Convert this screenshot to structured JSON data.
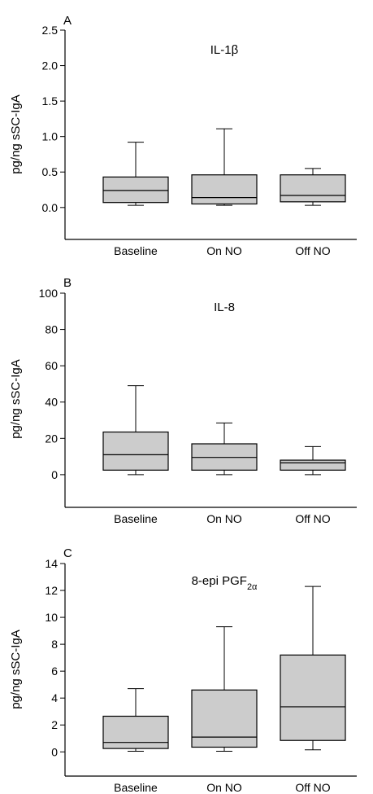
{
  "chart_data": [
    {
      "type": "box",
      "panel_label": "A",
      "title_main": "IL-1β",
      "title_sub": "",
      "ylabel": "pg/ng sSC-IgA",
      "ylim": [
        -0.45,
        2.5
      ],
      "yticks": [
        "2.5",
        "2.0",
        "1.5",
        "1.0",
        "0.5",
        "0.0"
      ],
      "ytick_values": [
        2.5,
        2.0,
        1.5,
        1.0,
        0.5,
        0.0
      ],
      "categories": [
        "Baseline",
        "On NO",
        "Off NO"
      ],
      "boxes": [
        {
          "min": 0.03,
          "q1": 0.07,
          "median": 0.24,
          "q3": 0.43,
          "max": 0.92
        },
        {
          "min": 0.03,
          "q1": 0.05,
          "median": 0.14,
          "q3": 0.46,
          "max": 1.11
        },
        {
          "min": 0.03,
          "q1": 0.08,
          "median": 0.17,
          "q3": 0.46,
          "max": 0.55
        }
      ]
    },
    {
      "type": "box",
      "panel_label": "B",
      "title_main": "IL-8",
      "title_sub": "",
      "ylabel": "pg/ng sSC-IgA",
      "ylim": [
        -18,
        100
      ],
      "yticks": [
        "100",
        "80",
        "60",
        "40",
        "20",
        "0"
      ],
      "ytick_values": [
        100,
        80,
        60,
        40,
        20,
        0
      ],
      "categories": [
        "Baseline",
        "On NO",
        "Off NO"
      ],
      "boxes": [
        {
          "min": 0,
          "q1": 2.5,
          "median": 11,
          "q3": 23.5,
          "max": 49
        },
        {
          "min": 0,
          "q1": 2.5,
          "median": 9.5,
          "q3": 17,
          "max": 28.5
        },
        {
          "min": 0,
          "q1": 2.5,
          "median": 6.5,
          "q3": 8,
          "max": 15.5
        }
      ]
    },
    {
      "type": "box",
      "panel_label": "C",
      "title_main": "8-epi PGF",
      "title_sub": "2α",
      "ylabel": "pg/ng sSC-IgA",
      "ylim": [
        -1.8,
        14
      ],
      "yticks": [
        "14",
        "12",
        "10",
        "8",
        "6",
        "4",
        "2",
        "0"
      ],
      "ytick_values": [
        14,
        12,
        10,
        8,
        6,
        4,
        2,
        0
      ],
      "categories": [
        "Baseline",
        "On NO",
        "Off NO"
      ],
      "boxes": [
        {
          "min": 0.05,
          "q1": 0.25,
          "median": 0.7,
          "q3": 2.65,
          "max": 4.7
        },
        {
          "min": 0.05,
          "q1": 0.35,
          "median": 1.1,
          "q3": 4.6,
          "max": 9.3
        },
        {
          "min": 0.15,
          "q1": 0.85,
          "median": 3.35,
          "q3": 7.2,
          "max": 12.3
        }
      ]
    }
  ],
  "colors": {
    "box_fill": "#cccccc",
    "stroke": "#000000"
  }
}
